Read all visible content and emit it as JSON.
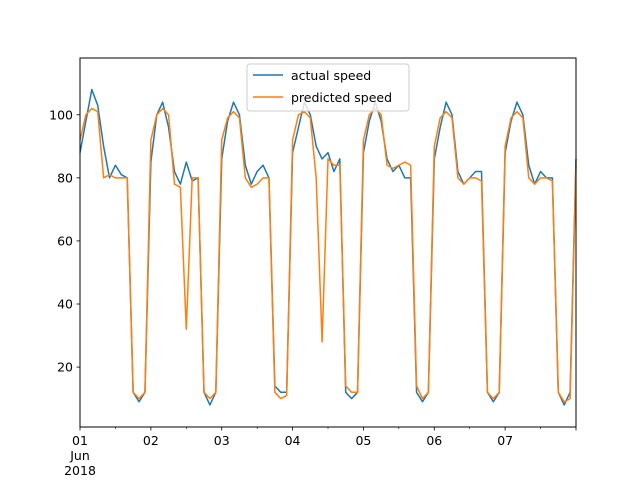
{
  "chart_data": {
    "type": "line",
    "title": "",
    "xlabel": "",
    "ylabel": "",
    "x_tick_labels": [
      "01",
      "02",
      "03",
      "04",
      "05",
      "06",
      "07"
    ],
    "x_tick_sublabel": [
      "Jun",
      "2018"
    ],
    "y_ticks": [
      20,
      40,
      60,
      80,
      100
    ],
    "ylim": [
      1,
      118
    ],
    "xlim": [
      "2018-06-01",
      "2018-06-08"
    ],
    "grid": false,
    "legend_position": "upper center",
    "x": [
      "2018-06-01 00:00",
      "2018-06-01 02:00",
      "2018-06-01 04:00",
      "2018-06-01 06:00",
      "2018-06-01 08:00",
      "2018-06-01 10:00",
      "2018-06-01 12:00",
      "2018-06-01 14:00",
      "2018-06-01 16:00",
      "2018-06-01 18:00",
      "2018-06-01 20:00",
      "2018-06-01 22:00",
      "2018-06-02 00:00",
      "2018-06-02 02:00",
      "2018-06-02 04:00",
      "2018-06-02 06:00",
      "2018-06-02 08:00",
      "2018-06-02 10:00",
      "2018-06-02 12:00",
      "2018-06-02 14:00",
      "2018-06-02 16:00",
      "2018-06-02 18:00",
      "2018-06-02 20:00",
      "2018-06-02 22:00",
      "2018-06-03 00:00",
      "2018-06-03 02:00",
      "2018-06-03 04:00",
      "2018-06-03 06:00",
      "2018-06-03 08:00",
      "2018-06-03 10:00",
      "2018-06-03 12:00",
      "2018-06-03 14:00",
      "2018-06-03 16:00",
      "2018-06-03 18:00",
      "2018-06-03 20:00",
      "2018-06-03 22:00",
      "2018-06-04 00:00",
      "2018-06-04 02:00",
      "2018-06-04 04:00",
      "2018-06-04 06:00",
      "2018-06-04 08:00",
      "2018-06-04 10:00",
      "2018-06-04 12:00",
      "2018-06-04 14:00",
      "2018-06-04 16:00",
      "2018-06-04 18:00",
      "2018-06-04 20:00",
      "2018-06-04 22:00",
      "2018-06-05 00:00",
      "2018-06-05 02:00",
      "2018-06-05 04:00",
      "2018-06-05 06:00",
      "2018-06-05 08:00",
      "2018-06-05 10:00",
      "2018-06-05 12:00",
      "2018-06-05 14:00",
      "2018-06-05 16:00",
      "2018-06-05 18:00",
      "2018-06-05 20:00",
      "2018-06-05 22:00",
      "2018-06-06 00:00",
      "2018-06-06 02:00",
      "2018-06-06 04:00",
      "2018-06-06 06:00",
      "2018-06-06 08:00",
      "2018-06-06 10:00",
      "2018-06-06 12:00",
      "2018-06-06 14:00",
      "2018-06-06 16:00",
      "2018-06-06 18:00",
      "2018-06-06 20:00",
      "2018-06-06 22:00",
      "2018-06-07 00:00",
      "2018-06-07 02:00",
      "2018-06-07 04:00",
      "2018-06-07 06:00",
      "2018-06-07 08:00",
      "2018-06-07 10:00",
      "2018-06-07 12:00",
      "2018-06-07 14:00",
      "2018-06-07 16:00",
      "2018-06-07 18:00",
      "2018-06-07 20:00",
      "2018-06-07 22:00",
      "2018-06-08 00:00"
    ],
    "series": [
      {
        "name": "actual speed",
        "color": "#1f77b4",
        "values": [
          88,
          98,
          108,
          103,
          90,
          80,
          84,
          81,
          80,
          12,
          9,
          12,
          85,
          100,
          104,
          96,
          82,
          78,
          85,
          79,
          80,
          12,
          8,
          12,
          86,
          98,
          104,
          100,
          84,
          78,
          82,
          84,
          80,
          14,
          12,
          12,
          88,
          96,
          104,
          100,
          90,
          86,
          88,
          82,
          86,
          12,
          10,
          12,
          88,
          98,
          104,
          98,
          86,
          82,
          84,
          80,
          80,
          12,
          9,
          12,
          86,
          96,
          104,
          100,
          82,
          78,
          80,
          82,
          82,
          12,
          9,
          12,
          88,
          98,
          104,
          100,
          84,
          78,
          82,
          80,
          80,
          12,
          8,
          12,
          86
        ]
      },
      {
        "name": "predicted speed",
        "color": "#ff7f0e",
        "values": [
          92,
          100,
          102,
          101,
          80,
          81,
          80,
          80,
          80,
          12,
          10,
          12,
          92,
          100,
          102,
          100,
          78,
          77,
          32,
          80,
          80,
          12,
          10,
          12,
          92,
          99,
          101,
          99,
          80,
          77,
          78,
          80,
          80,
          12,
          10,
          11,
          92,
          100,
          101,
          99,
          80,
          28,
          86,
          84,
          84,
          14,
          12,
          12,
          92,
          100,
          102,
          100,
          84,
          83,
          84,
          85,
          84,
          14,
          10,
          12,
          90,
          99,
          101,
          99,
          80,
          78,
          80,
          80,
          79,
          12,
          10,
          12,
          90,
          99,
          101,
          99,
          80,
          78,
          80,
          80,
          79,
          12,
          9,
          10,
          84
        ]
      }
    ]
  }
}
